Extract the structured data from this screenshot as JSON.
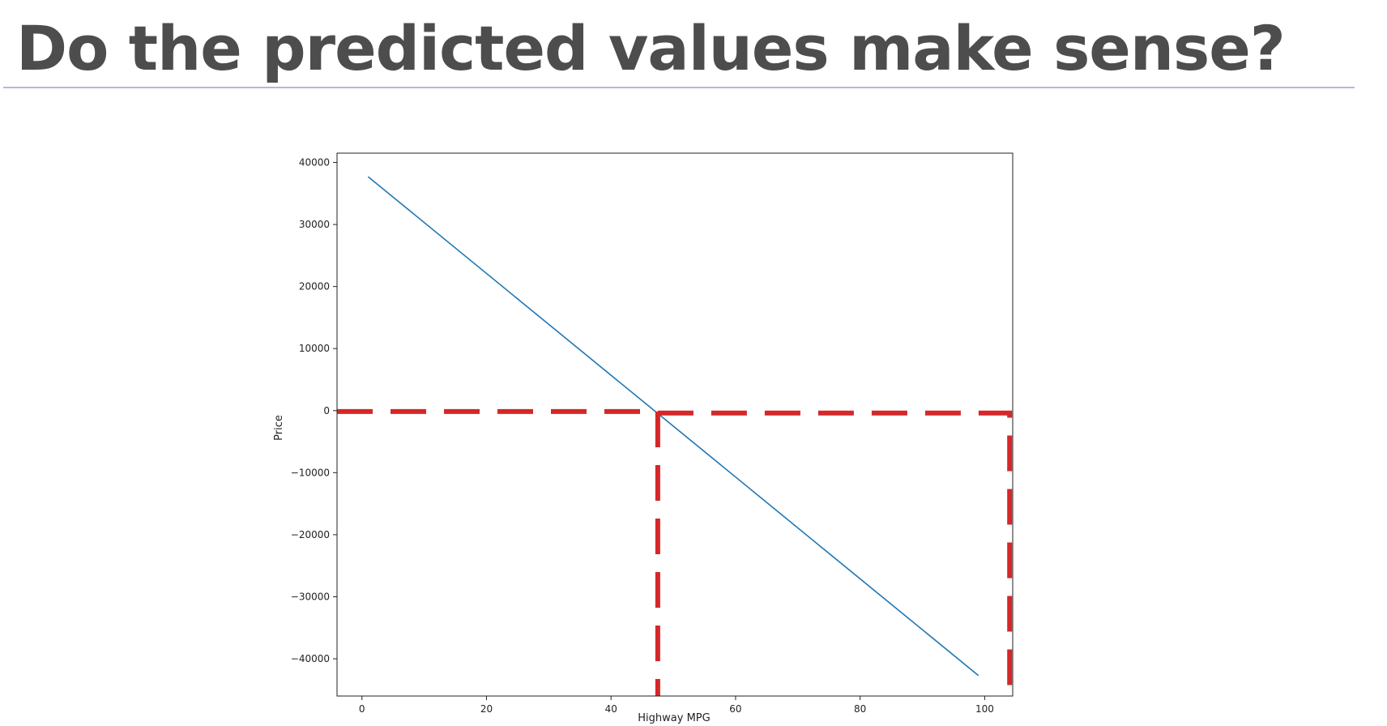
{
  "slide": {
    "title": "Do the predicted values make sense?"
  },
  "chart_data": {
    "type": "line",
    "xlabel": "Highway MPG",
    "ylabel": "Price",
    "xlim": [
      -4,
      104.5
    ],
    "ylim": [
      -46000,
      41500
    ],
    "x_ticks": [
      0,
      20,
      40,
      60,
      80,
      100
    ],
    "x_tick_labels": [
      "0",
      "20",
      "40",
      "60",
      "80",
      "100"
    ],
    "y_ticks": [
      40000,
      30000,
      20000,
      10000,
      0,
      -10000,
      -20000,
      -30000,
      -40000
    ],
    "y_tick_labels": [
      "40000",
      "30000",
      "20000",
      "10000",
      "0",
      "−10000",
      "−20000",
      "−30000",
      "−40000"
    ],
    "grid": false,
    "legend": "none",
    "series": [
      {
        "x": [
          1,
          99
        ],
        "y": [
          37700,
          -42700
        ],
        "color": "#1f77b4"
      }
    ],
    "annotations": [
      {
        "kind": "dashed-guide",
        "points": [
          [
            -4,
            -150
          ],
          [
            47.5,
            -150
          ],
          [
            47.5,
            -46000
          ]
        ],
        "color": "#d62728"
      },
      {
        "kind": "dashed-guide",
        "points": [
          [
            47.5,
            -400
          ],
          [
            104,
            -400
          ],
          [
            104,
            -46000
          ]
        ],
        "color": "#d62728"
      }
    ]
  }
}
